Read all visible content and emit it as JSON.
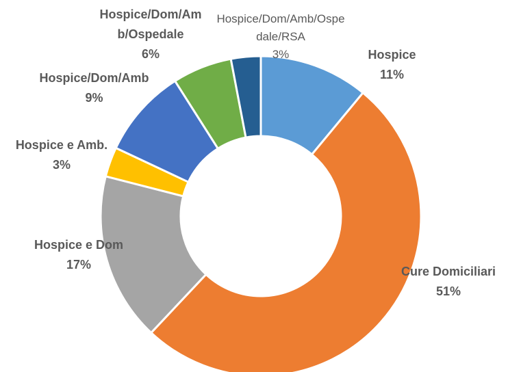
{
  "chart_data": {
    "type": "donut",
    "categories": [
      "Hospice",
      "Cure Domiciliari",
      "Hospice e Dom",
      "Hospice e Amb.",
      "Hospice/Dom/Amb",
      "Hospice/Dom/Amb/Ospedale",
      "Hospice/Dom/Amb/Ospedale/RSA"
    ],
    "values": [
      11,
      51,
      17,
      3,
      9,
      6,
      3
    ],
    "value_labels": [
      "11%",
      "51%",
      "17%",
      "3%",
      "9%",
      "6%",
      "3%"
    ],
    "colors": [
      "#5B9BD5",
      "#ED7D31",
      "#A5A5A5",
      "#FFC000",
      "#4472C4",
      "#70AD47",
      "#255E91"
    ]
  }
}
